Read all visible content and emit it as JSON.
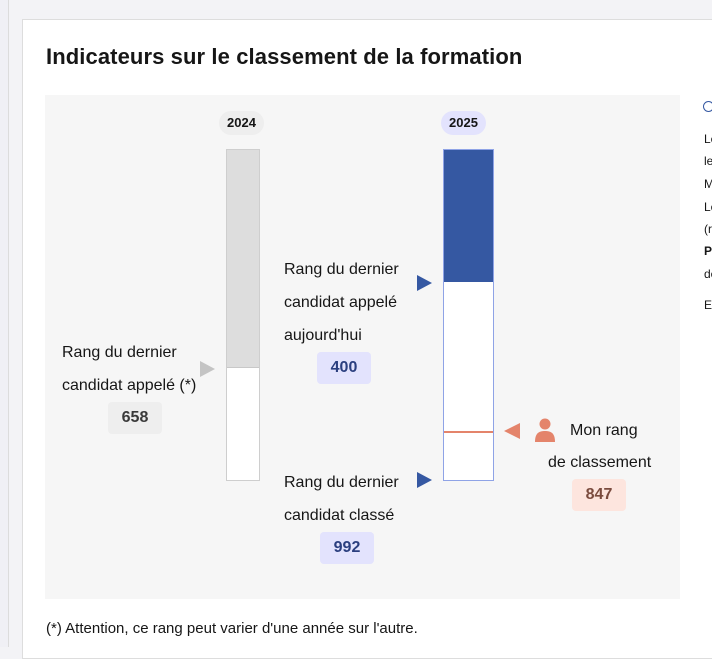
{
  "title": "Indicateurs sur le classement de la formation",
  "years": {
    "y2024": "2024",
    "y2025": "2025"
  },
  "bar_2024": {
    "called_rank": 658,
    "called_fraction": 0.66
  },
  "bar_2025": {
    "called_today_fraction": 0.4,
    "my_rank_fraction": 0.85
  },
  "labels": {
    "last_called_2024_line1": "Rang du dernier",
    "last_called_2024_line2": "candidat appelé (*)",
    "last_called_2024_value": "658",
    "last_called_today_line1": "Rang du dernier",
    "last_called_today_line2": "candidat appelé",
    "last_called_today_line3": "aujourd'hui",
    "last_called_today_value": "400",
    "last_ranked_line1": "Rang du dernier",
    "last_ranked_line2": "candidat classé",
    "last_ranked_value": "992",
    "my_rank_line1": "Mon rang",
    "my_rank_line2": "de classement",
    "my_rank_value": "847"
  },
  "footnote": "(*) Attention, ce rang peut varier d'une année sur l'autre.",
  "side_panel": {
    "lines": [
      "Le",
      "le",
      "M",
      "Le",
      "(r",
      "Pe",
      "de",
      "En"
    ]
  },
  "colors": {
    "accent_blue": "#3558a2",
    "accent_salmon": "#e4846b",
    "panel_bg": "#f6f6f6"
  }
}
